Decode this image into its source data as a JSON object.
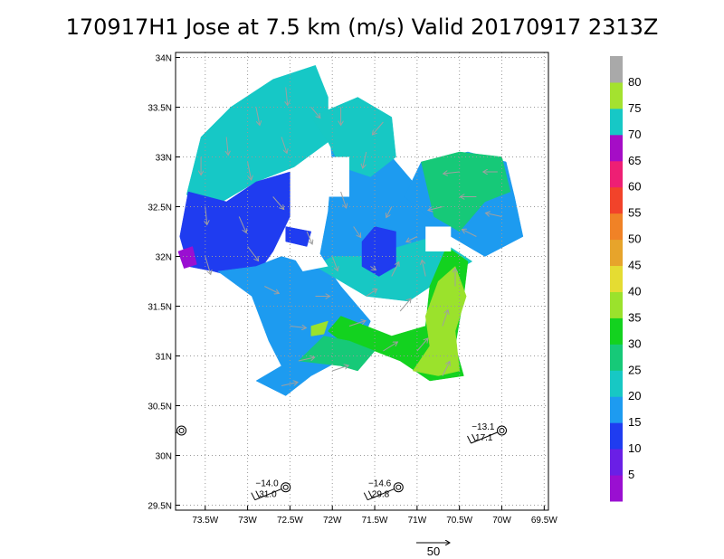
{
  "chart_data": {
    "type": "heatmap",
    "title": "170917H1 Jose at 7.5 km (m/s) Valid 20170917 2313Z",
    "xlim": [
      -73.85,
      -69.45
    ],
    "ylim": [
      29.45,
      34.05
    ],
    "x_ticks": [
      {
        "value": -73.5,
        "label": "73.5W"
      },
      {
        "value": -73.0,
        "label": "73W"
      },
      {
        "value": -72.5,
        "label": "72.5W"
      },
      {
        "value": -72.0,
        "label": "72W"
      },
      {
        "value": -71.5,
        "label": "71.5W"
      },
      {
        "value": -71.0,
        "label": "71W"
      },
      {
        "value": -70.5,
        "label": "70.5W"
      },
      {
        "value": -70.0,
        "label": "70W"
      },
      {
        "value": -69.5,
        "label": "69.5W"
      }
    ],
    "y_ticks": [
      {
        "value": 29.5,
        "label": "29.5N"
      },
      {
        "value": 30.0,
        "label": "30N"
      },
      {
        "value": 30.5,
        "label": "30.5N"
      },
      {
        "value": 31.0,
        "label": "31N"
      },
      {
        "value": 31.5,
        "label": "31.5N"
      },
      {
        "value": 32.0,
        "label": "32N"
      },
      {
        "value": 32.5,
        "label": "32.5N"
      },
      {
        "value": 33.0,
        "label": "33N"
      },
      {
        "value": 33.5,
        "label": "33.5N"
      },
      {
        "value": 34.0,
        "label": "34N"
      }
    ],
    "grid": true,
    "colorbar": {
      "levels": [
        {
          "label": "5",
          "color": "#9a0fd1"
        },
        {
          "label": "10",
          "color": "#6a1fe6"
        },
        {
          "label": "15",
          "color": "#1f3cf0"
        },
        {
          "label": "20",
          "color": "#1d9bf0"
        },
        {
          "label": "25",
          "color": "#17c8c4"
        },
        {
          "label": "30",
          "color": "#16c978"
        },
        {
          "label": "35",
          "color": "#13d21f"
        },
        {
          "label": "40",
          "color": "#9be22c"
        },
        {
          "label": "45",
          "color": "#e5dc32"
        },
        {
          "label": "50",
          "color": "#e7a42b"
        },
        {
          "label": "55",
          "color": "#f08226"
        },
        {
          "label": "60",
          "color": "#f2432a"
        },
        {
          "label": "65",
          "color": "#ee1f74"
        },
        {
          "label": "70",
          "color": "#a50dc6"
        },
        {
          "label": "75",
          "color": "#16c8c6"
        },
        {
          "label": "80",
          "color": "#a4e22f"
        },
        {
          "label": "",
          "color": "#a9a9a9"
        }
      ]
    },
    "regions": [
      {
        "level": 14,
        "poly": [
          [
            -73.72,
            32.62
          ],
          [
            -73.55,
            33.2
          ],
          [
            -73.2,
            33.5
          ],
          [
            -72.7,
            33.78
          ],
          [
            -72.2,
            33.92
          ],
          [
            -72.05,
            33.6
          ],
          [
            -72.05,
            33.15
          ],
          [
            -72.45,
            32.9
          ],
          [
            -72.9,
            32.75
          ],
          [
            -73.3,
            32.55
          ]
        ]
      },
      {
        "level": 2,
        "poly": [
          [
            -73.8,
            32.2
          ],
          [
            -73.7,
            32.65
          ],
          [
            -73.25,
            32.55
          ],
          [
            -72.9,
            32.75
          ],
          [
            -72.5,
            32.85
          ],
          [
            -72.5,
            32.4
          ],
          [
            -72.7,
            32.05
          ],
          [
            -72.95,
            31.75
          ],
          [
            -73.4,
            31.85
          ],
          [
            -73.7,
            31.9
          ]
        ]
      },
      {
        "level": 0,
        "poly": [
          [
            -73.82,
            32.05
          ],
          [
            -73.65,
            32.1
          ],
          [
            -73.6,
            31.92
          ],
          [
            -73.75,
            31.88
          ]
        ]
      },
      {
        "level": 3,
        "poly": [
          [
            -73.35,
            31.85
          ],
          [
            -72.95,
            31.6
          ],
          [
            -72.75,
            31.15
          ],
          [
            -72.6,
            30.9
          ],
          [
            -72.9,
            30.75
          ],
          [
            -72.55,
            30.6
          ],
          [
            -72.25,
            30.8
          ],
          [
            -71.7,
            31.05
          ],
          [
            -71.55,
            31.35
          ],
          [
            -71.9,
            31.7
          ],
          [
            -72.15,
            32.0
          ],
          [
            -72.05,
            32.45
          ],
          [
            -72.0,
            32.95
          ],
          [
            -72.05,
            33.4
          ],
          [
            -71.7,
            33.5
          ],
          [
            -71.35,
            33.4
          ],
          [
            -71.3,
            33.0
          ],
          [
            -71.0,
            32.7
          ],
          [
            -70.7,
            32.4
          ],
          [
            -70.6,
            32.05
          ],
          [
            -70.9,
            31.8
          ],
          [
            -71.4,
            31.75
          ],
          [
            -72.0,
            31.85
          ],
          [
            -72.6,
            32.0
          ],
          [
            -72.9,
            31.9
          ]
        ]
      },
      {
        "level": 3,
        "poly": [
          [
            -71.15,
            32.6
          ],
          [
            -70.95,
            32.95
          ],
          [
            -70.4,
            33.05
          ],
          [
            -69.95,
            32.95
          ],
          [
            -69.85,
            32.6
          ],
          [
            -69.75,
            32.2
          ],
          [
            -70.2,
            32.0
          ],
          [
            -70.6,
            32.2
          ]
        ]
      },
      {
        "level": 4,
        "poly": [
          [
            -72.25,
            33.4
          ],
          [
            -71.7,
            33.6
          ],
          [
            -71.3,
            33.4
          ],
          [
            -71.25,
            33.0
          ],
          [
            -71.55,
            32.8
          ],
          [
            -71.9,
            32.9
          ],
          [
            -72.05,
            33.15
          ]
        ]
      },
      {
        "level": 5,
        "poly": [
          [
            -70.95,
            32.95
          ],
          [
            -70.5,
            33.05
          ],
          [
            -70.0,
            33.0
          ],
          [
            -69.9,
            32.65
          ],
          [
            -70.2,
            32.55
          ],
          [
            -70.5,
            32.25
          ],
          [
            -70.8,
            32.4
          ]
        ]
      },
      {
        "level": 4,
        "poly": [
          [
            -72.2,
            31.9
          ],
          [
            -71.6,
            31.6
          ],
          [
            -71.1,
            31.55
          ],
          [
            -70.75,
            31.75
          ],
          [
            -70.35,
            31.95
          ],
          [
            -70.8,
            32.2
          ],
          [
            -71.2,
            32.1
          ],
          [
            -71.6,
            32.0
          ],
          [
            -72.0,
            32.0
          ]
        ]
      },
      {
        "level": 6,
        "poly": [
          [
            -71.9,
            31.4
          ],
          [
            -71.3,
            31.2
          ],
          [
            -70.9,
            31.3
          ],
          [
            -70.85,
            31.7
          ],
          [
            -70.65,
            32.1
          ],
          [
            -70.4,
            31.95
          ],
          [
            -70.45,
            31.6
          ],
          [
            -70.55,
            31.1
          ],
          [
            -70.45,
            30.8
          ],
          [
            -70.85,
            30.75
          ],
          [
            -71.2,
            30.95
          ],
          [
            -71.5,
            31.05
          ],
          [
            -71.75,
            31.05
          ],
          [
            -72.05,
            31.25
          ]
        ]
      },
      {
        "level": 5,
        "poly": [
          [
            -72.4,
            30.95
          ],
          [
            -71.9,
            30.9
          ],
          [
            -71.7,
            30.85
          ],
          [
            -71.5,
            31.05
          ],
          [
            -71.8,
            31.15
          ],
          [
            -72.1,
            31.2
          ]
        ]
      },
      {
        "level": 7,
        "poly": [
          [
            -71.05,
            30.85
          ],
          [
            -70.85,
            31.1
          ],
          [
            -70.9,
            31.4
          ],
          [
            -70.75,
            31.75
          ],
          [
            -70.55,
            31.9
          ],
          [
            -70.42,
            31.6
          ],
          [
            -70.55,
            31.25
          ],
          [
            -70.5,
            30.85
          ],
          [
            -70.75,
            30.8
          ]
        ]
      },
      {
        "level": 7,
        "poly": [
          [
            -72.25,
            31.3
          ],
          [
            -72.05,
            31.35
          ],
          [
            -72.1,
            31.22
          ],
          [
            -72.25,
            31.2
          ]
        ]
      },
      {
        "level": 2,
        "poly": [
          [
            -71.65,
            32.15
          ],
          [
            -71.5,
            32.3
          ],
          [
            -71.25,
            32.25
          ],
          [
            -71.25,
            31.9
          ],
          [
            -71.45,
            31.8
          ],
          [
            -71.65,
            31.9
          ]
        ]
      },
      {
        "level": 2,
        "poly": [
          [
            -72.55,
            32.3
          ],
          [
            -72.25,
            32.25
          ],
          [
            -72.3,
            32.1
          ],
          [
            -72.55,
            32.15
          ]
        ]
      }
    ],
    "holes": [
      {
        "poly": [
          [
            -72.25,
            33.0
          ],
          [
            -71.8,
            33.0
          ],
          [
            -71.8,
            32.6
          ],
          [
            -72.25,
            32.6
          ]
        ]
      },
      {
        "poly": [
          [
            -70.9,
            32.3
          ],
          [
            -70.6,
            32.3
          ],
          [
            -70.6,
            32.05
          ],
          [
            -70.9,
            32.05
          ]
        ]
      },
      {
        "poly": [
          [
            -72.5,
            32.05
          ],
          [
            -72.2,
            32.1
          ],
          [
            -72.05,
            31.9
          ],
          [
            -72.35,
            31.85
          ]
        ]
      }
    ],
    "wind_vectors": [
      {
        "lon": -73.55,
        "lat": 33.0,
        "u": 0,
        "v": -10
      },
      {
        "lon": -73.25,
        "lat": 33.2,
        "u": 1,
        "v": -10
      },
      {
        "lon": -72.9,
        "lat": 33.5,
        "u": 2,
        "v": -10
      },
      {
        "lon": -72.55,
        "lat": 33.7,
        "u": 1,
        "v": -10
      },
      {
        "lon": -73.0,
        "lat": 32.95,
        "u": 2,
        "v": -10
      },
      {
        "lon": -72.6,
        "lat": 33.2,
        "u": 3,
        "v": -9
      },
      {
        "lon": -72.25,
        "lat": 33.5,
        "u": 5,
        "v": -6
      },
      {
        "lon": -73.5,
        "lat": 32.5,
        "u": 1,
        "v": -10
      },
      {
        "lon": -73.1,
        "lat": 32.4,
        "u": 4,
        "v": -9
      },
      {
        "lon": -72.7,
        "lat": 32.6,
        "u": 6,
        "v": -7
      },
      {
        "lon": -73.5,
        "lat": 32.0,
        "u": 3,
        "v": -10
      },
      {
        "lon": -73.0,
        "lat": 32.1,
        "u": 6,
        "v": -8
      },
      {
        "lon": -72.8,
        "lat": 31.7,
        "u": 8,
        "v": -4
      },
      {
        "lon": -72.5,
        "lat": 31.3,
        "u": 9,
        "v": -1
      },
      {
        "lon": -72.4,
        "lat": 30.95,
        "u": 9,
        "v": 2
      },
      {
        "lon": -72.0,
        "lat": 30.85,
        "u": 9,
        "v": 3
      },
      {
        "lon": -72.2,
        "lat": 31.6,
        "u": 8,
        "v": 0
      },
      {
        "lon": -71.8,
        "lat": 31.3,
        "u": 9,
        "v": 3
      },
      {
        "lon": -71.4,
        "lat": 31.05,
        "u": 8,
        "v": 5
      },
      {
        "lon": -71.0,
        "lat": 31.05,
        "u": 6,
        "v": 7
      },
      {
        "lon": -70.7,
        "lat": 30.8,
        "u": 4,
        "v": 8
      },
      {
        "lon": -70.7,
        "lat": 31.3,
        "u": 3,
        "v": 9
      },
      {
        "lon": -71.2,
        "lat": 31.45,
        "u": 6,
        "v": 7
      },
      {
        "lon": -70.55,
        "lat": 31.7,
        "u": 0,
        "v": 10
      },
      {
        "lon": -70.9,
        "lat": 31.8,
        "u": -2,
        "v": 9
      },
      {
        "lon": -71.3,
        "lat": 31.8,
        "u": 4,
        "v": 8
      },
      {
        "lon": -71.6,
        "lat": 31.6,
        "u": 6,
        "v": 4
      },
      {
        "lon": -72.0,
        "lat": 32.0,
        "u": 3,
        "v": -8
      },
      {
        "lon": -71.75,
        "lat": 32.3,
        "u": 4,
        "v": -6
      },
      {
        "lon": -71.3,
        "lat": 32.5,
        "u": -3,
        "v": -6
      },
      {
        "lon": -71.0,
        "lat": 32.2,
        "u": -6,
        "v": -3
      },
      {
        "lon": -70.7,
        "lat": 32.5,
        "u": -8,
        "v": -2
      },
      {
        "lon": -70.3,
        "lat": 32.6,
        "u": -9,
        "v": 0
      },
      {
        "lon": -70.0,
        "lat": 32.4,
        "u": -9,
        "v": 2
      },
      {
        "lon": -70.3,
        "lat": 32.2,
        "u": -8,
        "v": 4
      },
      {
        "lon": -70.5,
        "lat": 32.85,
        "u": -9,
        "v": -1
      },
      {
        "lon": -70.05,
        "lat": 32.85,
        "u": -8,
        "v": 0
      },
      {
        "lon": -71.9,
        "lat": 32.65,
        "u": 3,
        "v": -9
      },
      {
        "lon": -71.6,
        "lat": 33.05,
        "u": -2,
        "v": -9
      },
      {
        "lon": -71.4,
        "lat": 33.35,
        "u": -6,
        "v": -7
      },
      {
        "lon": -71.9,
        "lat": 33.5,
        "u": 0,
        "v": -10
      },
      {
        "lon": -72.3,
        "lat": 32.25,
        "u": 3,
        "v": -7
      },
      {
        "lon": -71.55,
        "lat": 31.9,
        "u": 3,
        "v": -2
      },
      {
        "lon": -72.6,
        "lat": 30.7,
        "u": 9,
        "v": 2
      }
    ],
    "observations": [
      {
        "lon": -73.78,
        "lat": 30.25,
        "labels": [
          "",
          ""
        ]
      },
      {
        "lon": -72.55,
        "lat": 29.68,
        "labels": [
          "−14.0",
          "31.0"
        ]
      },
      {
        "lon": -71.22,
        "lat": 29.68,
        "labels": [
          "−14.6",
          "29.8"
        ]
      },
      {
        "lon": -70.0,
        "lat": 30.25,
        "labels": [
          "−13.1",
          "17.1"
        ]
      }
    ],
    "reference_vector": {
      "label": "50",
      "u": 50,
      "v": 0
    }
  }
}
